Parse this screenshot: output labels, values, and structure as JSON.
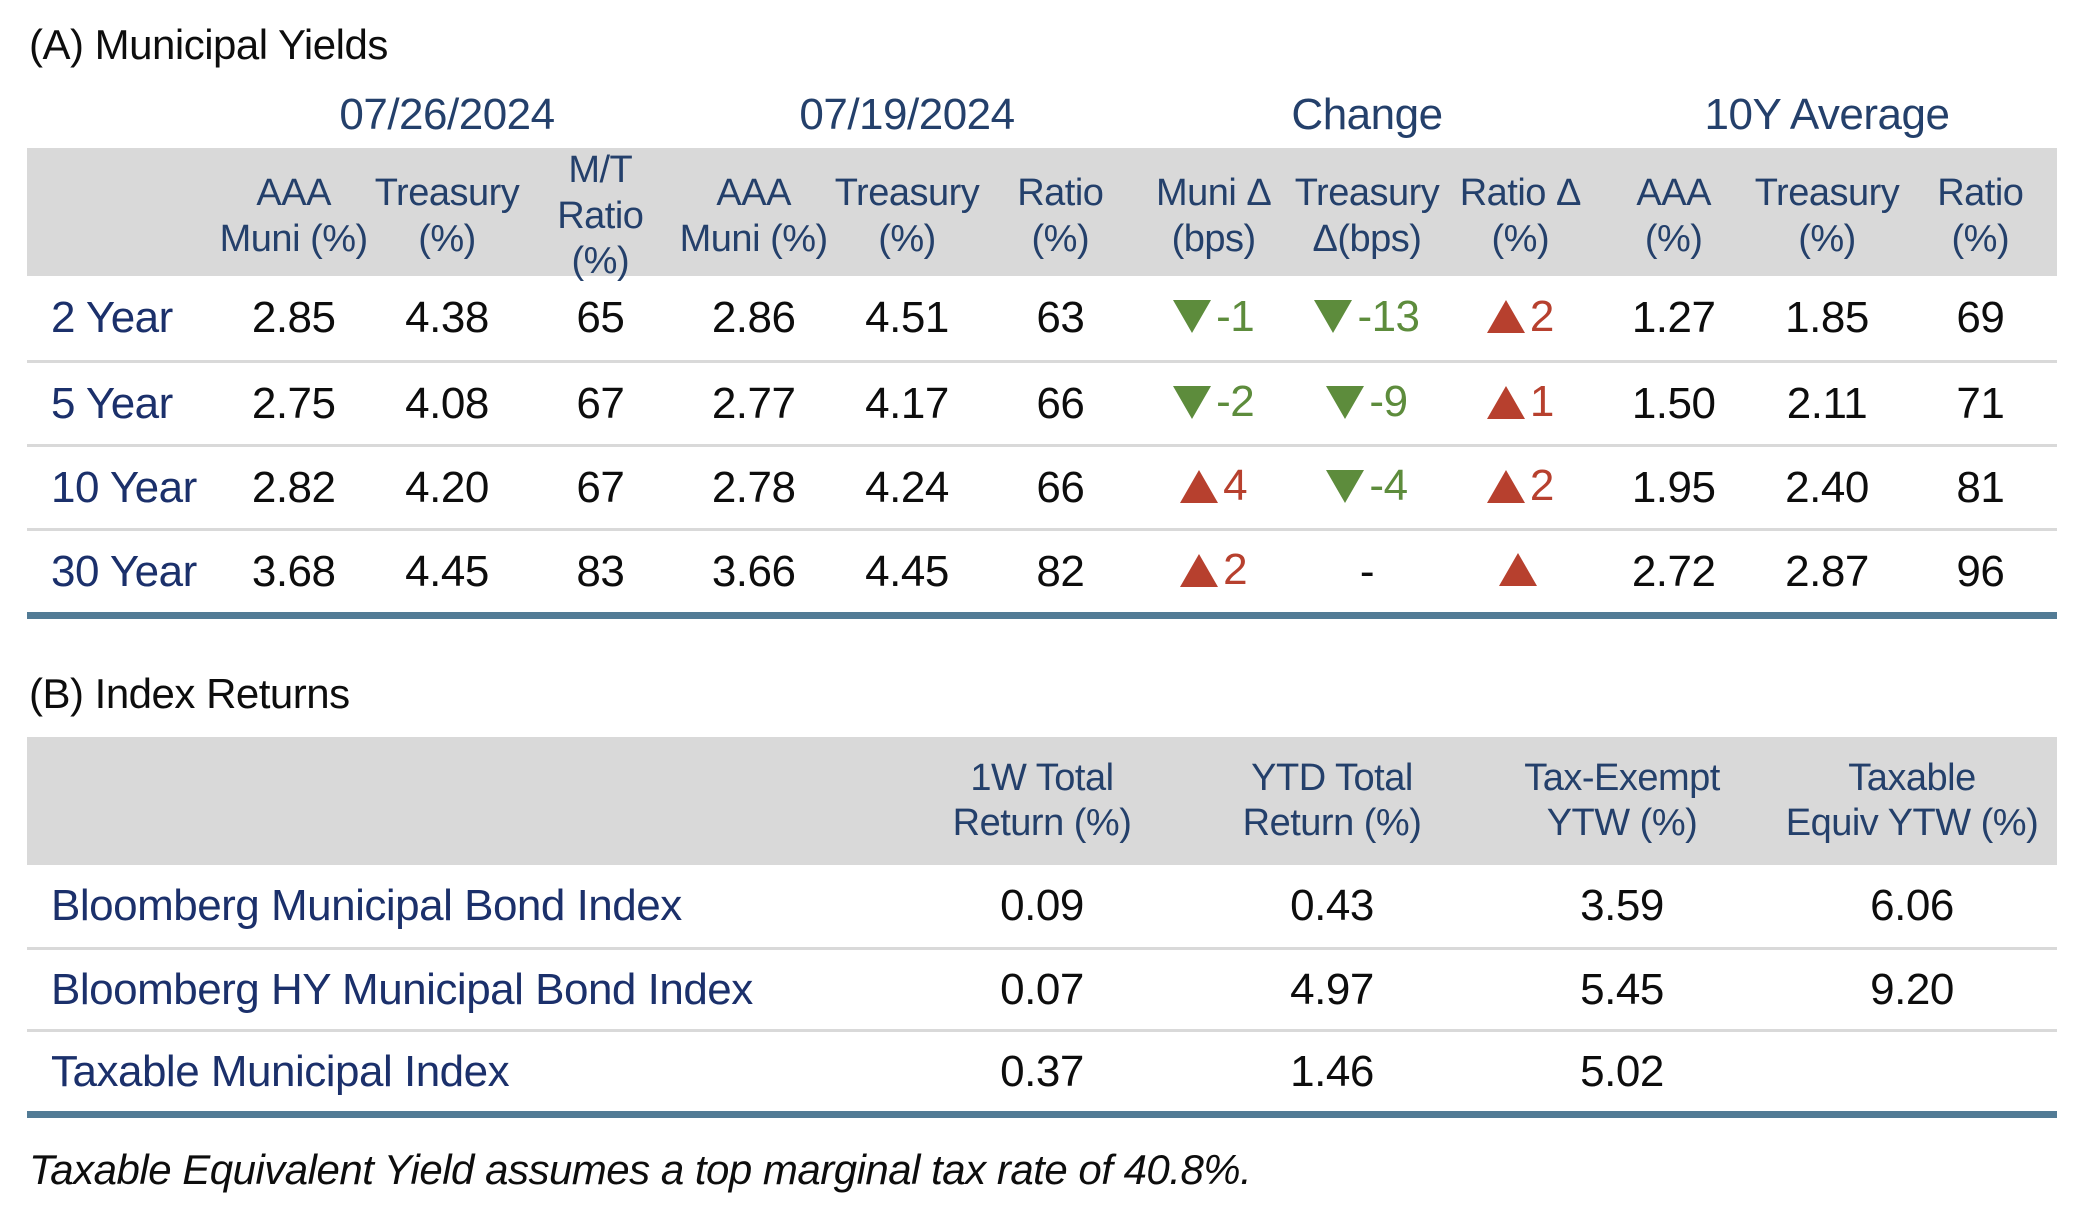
{
  "colors": {
    "navy_header": "#24406b",
    "navy_label": "#1b306b",
    "header_band": "#d9d9d9",
    "table_bottom_border": "#527b95",
    "positive_change_red": "#b7402e",
    "negative_change_green": "#5d8c3c"
  },
  "section_a": {
    "title": "(A) Municipal Yields",
    "date_groups": [
      "07/26/2024",
      "07/19/2024",
      "Change",
      "10Y Average"
    ],
    "col_headers": [
      {
        "l1": "AAA",
        "l2": "Muni (%)"
      },
      {
        "l1": "Treasury",
        "l2": "(%)"
      },
      {
        "l1": "M/T",
        "l2": "Ratio (%)"
      },
      {
        "l1": "AAA",
        "l2": "Muni (%)"
      },
      {
        "l1": "Treasury",
        "l2": "(%)"
      },
      {
        "l1": "Ratio",
        "l2": "(%)"
      },
      {
        "l1": "Muni Δ",
        "l2": "(bps)"
      },
      {
        "l1": "Treasury",
        "l2": "Δ(bps)"
      },
      {
        "l1": "Ratio Δ",
        "l2": "(%)"
      },
      {
        "l1": "AAA",
        "l2": "(%)"
      },
      {
        "l1": "Treasury",
        "l2": "(%)"
      },
      {
        "l1": "Ratio",
        "l2": "(%)"
      }
    ],
    "rows": [
      {
        "label": "2 Year",
        "current": [
          "2.85",
          "4.38",
          "65"
        ],
        "prior": [
          "2.86",
          "4.51",
          "63"
        ],
        "change": [
          {
            "dir": "down",
            "value": "-1"
          },
          {
            "dir": "down",
            "value": "-13"
          },
          {
            "dir": "up",
            "value": "2"
          }
        ],
        "avg": [
          "1.27",
          "1.85",
          "69"
        ]
      },
      {
        "label": "5 Year",
        "current": [
          "2.75",
          "4.08",
          "67"
        ],
        "prior": [
          "2.77",
          "4.17",
          "66"
        ],
        "change": [
          {
            "dir": "down",
            "value": "-2"
          },
          {
            "dir": "down",
            "value": "-9"
          },
          {
            "dir": "up",
            "value": "1"
          }
        ],
        "avg": [
          "1.50",
          "2.11",
          "71"
        ]
      },
      {
        "label": "10 Year",
        "current": [
          "2.82",
          "4.20",
          "67"
        ],
        "prior": [
          "2.78",
          "4.24",
          "66"
        ],
        "change": [
          {
            "dir": "up",
            "value": "4"
          },
          {
            "dir": "down",
            "value": "-4"
          },
          {
            "dir": "up",
            "value": "2"
          }
        ],
        "avg": [
          "1.95",
          "2.40",
          "81"
        ]
      },
      {
        "label": "30 Year",
        "current": [
          "3.68",
          "4.45",
          "83"
        ],
        "prior": [
          "3.66",
          "4.45",
          "82"
        ],
        "change": [
          {
            "dir": "up",
            "value": "2"
          },
          {
            "dir": "none",
            "value": "-"
          },
          {
            "dir": "up",
            "value": ""
          }
        ],
        "avg": [
          "2.72",
          "2.87",
          "96"
        ]
      }
    ]
  },
  "section_b": {
    "title": "(B) Index Returns",
    "col_headers": [
      {
        "l1": "1W Total",
        "l2": "Return (%)"
      },
      {
        "l1": "YTD Total",
        "l2": "Return (%)"
      },
      {
        "l1": "Tax-Exempt",
        "l2": "YTW (%)"
      },
      {
        "l1": "Taxable",
        "l2": "Equiv YTW (%)"
      }
    ],
    "rows": [
      {
        "label": "Bloomberg Municipal Bond Index",
        "values": [
          "0.09",
          "0.43",
          "3.59",
          "6.06"
        ]
      },
      {
        "label": "Bloomberg HY Municipal Bond Index",
        "values": [
          "0.07",
          "4.97",
          "5.45",
          "9.20"
        ]
      },
      {
        "label": "Taxable Municipal Index",
        "values": [
          "0.37",
          "1.46",
          "5.02",
          ""
        ]
      }
    ]
  },
  "footnote": "Taxable Equivalent Yield assumes a top marginal tax rate of 40.8%."
}
